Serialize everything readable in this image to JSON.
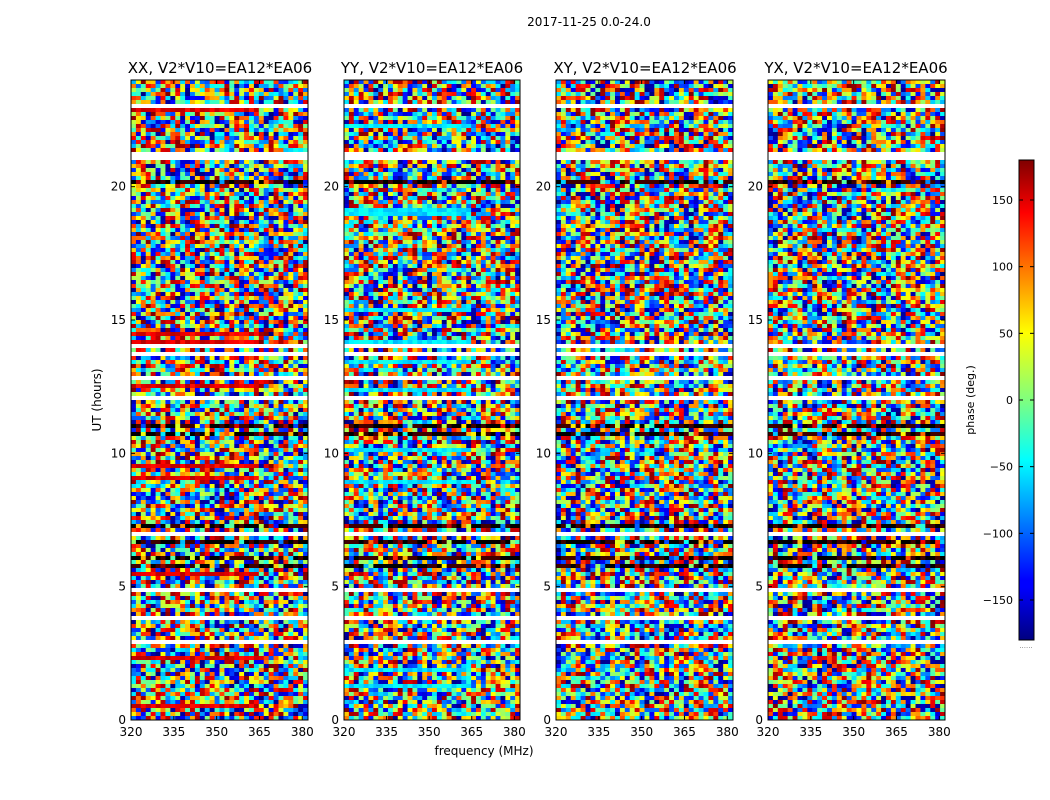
{
  "figure_title": "2017-11-25 0.0-24.0",
  "chart_data": {
    "type": "heatmap",
    "title": "2017-11-25 0.0-24.0",
    "xlabel": "frequency (MHz)",
    "ylabel": "UT (hours)",
    "xlim": [
      320,
      382
    ],
    "ylim": [
      0,
      24
    ],
    "xticks": [
      320,
      335,
      350,
      365,
      380
    ],
    "yticks": [
      0,
      5,
      10,
      15,
      20
    ],
    "colormap": "jet",
    "colorbar": {
      "label": "phase (deg.)",
      "range": [
        -180,
        180
      ],
      "ticks": [
        150,
        100,
        50,
        0,
        -50,
        -100,
        -150
      ],
      "tick_labels": [
        "150",
        "100",
        "50",
        "0",
        "−50",
        "−100",
        "−150"
      ],
      "under_label": "......"
    },
    "panels": [
      {
        "name": "XX, V2*V10=EA12*EA06",
        "pol": "XX"
      },
      {
        "name": "YY, V2*V10=EA12*EA06",
        "pol": "YY"
      },
      {
        "name": "XY, V2*V10=EA12*EA06",
        "pol": "XY"
      },
      {
        "name": "YX, V2*V10=EA12*EA06",
        "pol": "YX"
      }
    ],
    "flagged_ut_ranges": [
      [
        1.6,
        1.7
      ],
      [
        2.55,
        2.6
      ],
      [
        2.9,
        3.0
      ],
      [
        3.75,
        3.85
      ],
      [
        4.15,
        4.2
      ],
      [
        4.85,
        4.9
      ],
      [
        6.9,
        7.0
      ],
      [
        11.95,
        12.1
      ],
      [
        12.8,
        12.85
      ],
      [
        13.7,
        13.8
      ],
      [
        14.0,
        14.05
      ],
      [
        14.5,
        14.55
      ],
      [
        15.4,
        15.45
      ],
      [
        19.0,
        19.1
      ],
      [
        21.0,
        21.3
      ],
      [
        21.7,
        21.75
      ],
      [
        22.2,
        22.25
      ],
      [
        23.0,
        23.05
      ]
    ],
    "dark_ut_ranges": [
      [
        1.75,
        1.85
      ],
      [
        5.1,
        5.15
      ],
      [
        5.4,
        5.45
      ],
      [
        5.7,
        5.8
      ],
      [
        6.05,
        6.2
      ],
      [
        6.6,
        6.75
      ],
      [
        7.2,
        7.3
      ],
      [
        10.65,
        10.75
      ],
      [
        10.95,
        11.05
      ],
      [
        15.85,
        15.9
      ],
      [
        17.2,
        17.3
      ],
      [
        19.8,
        19.85
      ],
      [
        20.1,
        20.2
      ],
      [
        20.5,
        20.55
      ],
      [
        22.0,
        22.05
      ]
    ]
  }
}
